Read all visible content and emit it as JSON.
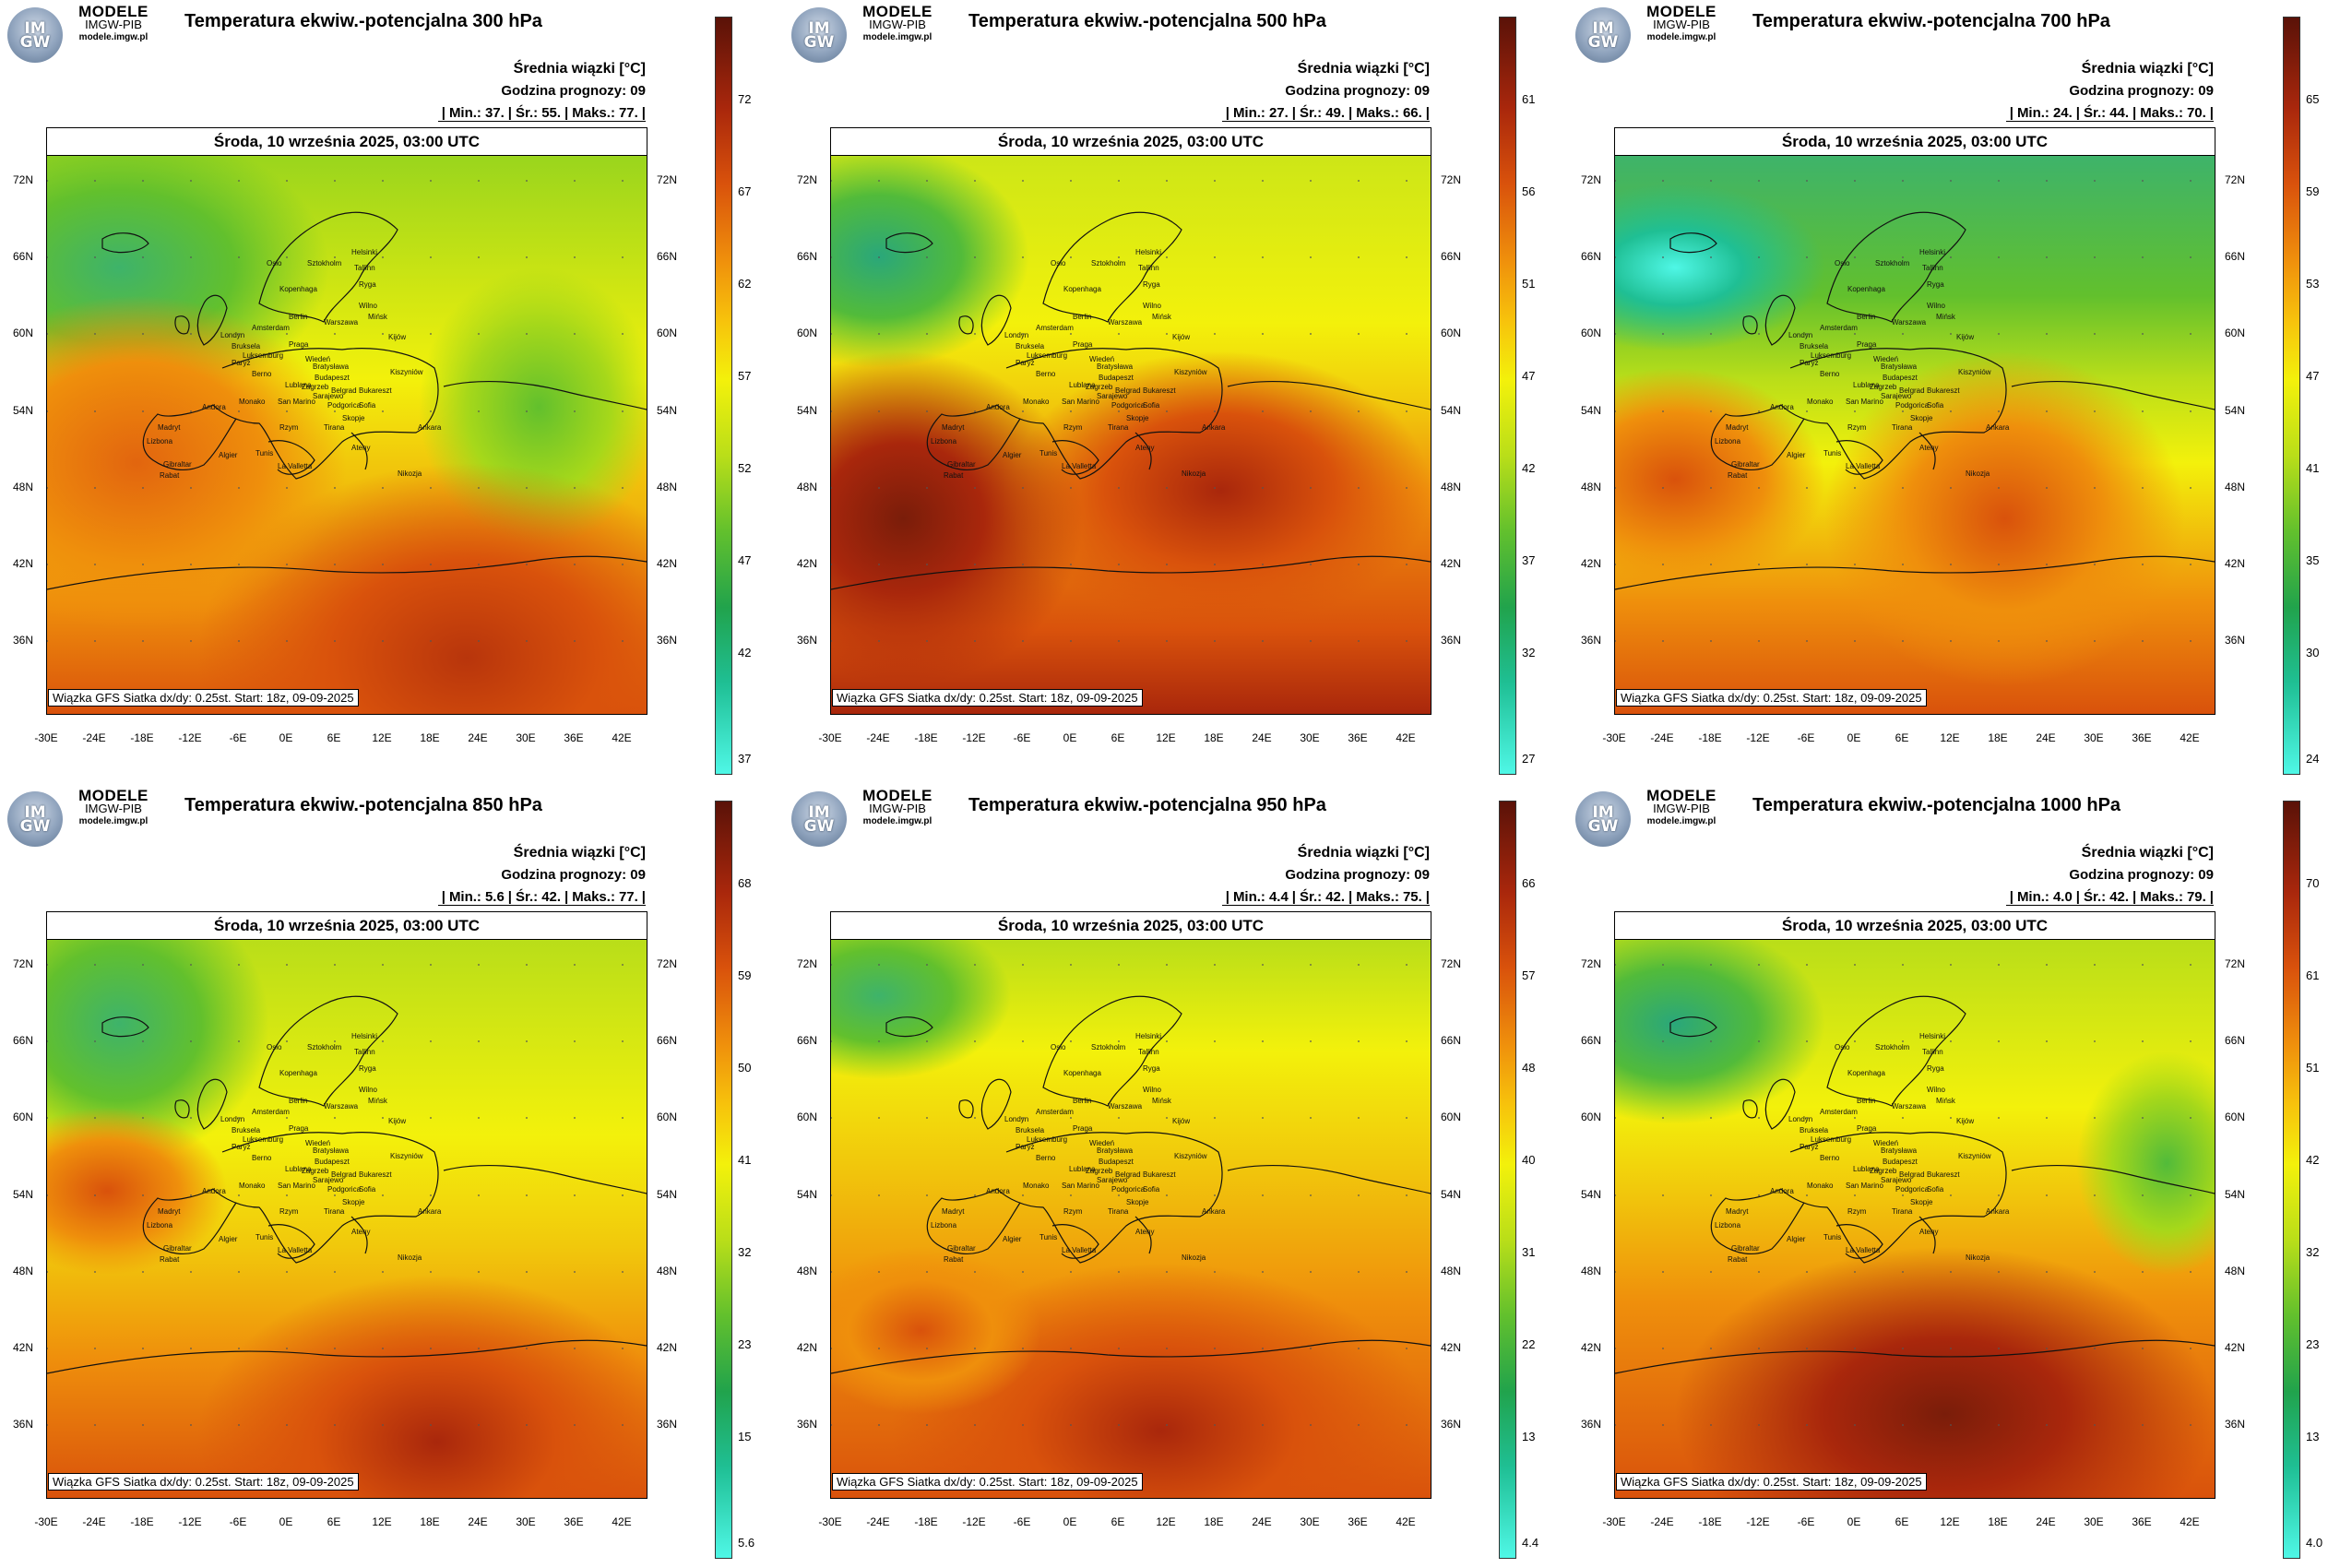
{
  "brand": {
    "main": "MODELE",
    "sub": "IMGW-PIB",
    "url": "modele.imgw.pl",
    "logo_text": "IM GW"
  },
  "common": {
    "legend_title": "Średnia wiązki [°C]",
    "forecast_hour": "Godzina prognozy: 09",
    "date": "Środa, 10 września 2025, 03:00 UTC",
    "footnote": "Wiązka GFS Siatka dx/dy: 0.25st. Start: 18z, 09-09-2025",
    "min_label": "Min.:",
    "mean_label": "Śr.:",
    "max_label": "Maks.:",
    "lat_labels": [
      "72N",
      "66N",
      "60N",
      "54N",
      "48N",
      "42N",
      "36N"
    ],
    "lon_labels": [
      "-30E",
      "-24E",
      "-18E",
      "-12E",
      "-6E",
      "0E",
      "6E",
      "12E",
      "18E",
      "24E",
      "30E",
      "36E",
      "42E"
    ],
    "cities": [
      "Oslo",
      "Sztokholm",
      "Helsinki",
      "Tallinn",
      "Ryga",
      "Kopenhaga",
      "Wilno",
      "Amsterdam",
      "Berlin",
      "Warszawa",
      "Mińsk",
      "Londyn",
      "Bruksela",
      "Luksemburg",
      "Praga",
      "Kijów",
      "Paryż",
      "Wiedeń",
      "Bratysława",
      "Berno",
      "Budapeszt",
      "Kiszyniów",
      "Lublana",
      "Zagrzeb",
      "Belgrad",
      "Bukareszt",
      "Sarajewo",
      "Podgorica",
      "Sofia",
      "Monako",
      "San Marino",
      "Andora",
      "Skopje",
      "Tirana",
      "Madryt",
      "Rzym",
      "Ankara",
      "Lizbona",
      "Ateny",
      "Algier",
      "Tunis",
      "Gibraltar",
      "La Valletta",
      "Rabat",
      "Nikozja"
    ],
    "colors": {
      "low": "#4ff7e6",
      "mid_green": "#21a34c",
      "yellow": "#f3f10b",
      "orange": "#ef8f0c",
      "high": "#5a1208"
    }
  },
  "panels": [
    {
      "title": "Temperatura ekwiw.-potencjalna 300 hPa",
      "min": "37.",
      "mean": "55.",
      "max": "77.",
      "ticks": [
        "72",
        "67",
        "62",
        "57",
        "52",
        "47",
        "42",
        "37"
      ]
    },
    {
      "title": "Temperatura ekwiw.-potencjalna 500 hPa",
      "min": "27.",
      "mean": "49.",
      "max": "66.",
      "ticks": [
        "61",
        "56",
        "51",
        "47",
        "42",
        "37",
        "32",
        "27"
      ]
    },
    {
      "title": "Temperatura ekwiw.-potencjalna 700 hPa",
      "min": "24.",
      "mean": "44.",
      "max": "70.",
      "ticks": [
        "65",
        "59",
        "53",
        "47",
        "41",
        "35",
        "30",
        "24"
      ]
    },
    {
      "title": "Temperatura ekwiw.-potencjalna 850 hPa",
      "min": "5.6",
      "mean": "42.",
      "max": "77.",
      "ticks": [
        "68",
        "59",
        "50",
        "41",
        "32",
        "23",
        "15",
        "5.6"
      ]
    },
    {
      "title": "Temperatura ekwiw.-potencjalna 950 hPa",
      "min": "4.4",
      "mean": "42.",
      "max": "75.",
      "ticks": [
        "66",
        "57",
        "48",
        "40",
        "31",
        "22",
        "13",
        "4.4"
      ]
    },
    {
      "title": "Temperatura ekwiw.-potencjalna 1000 hPa",
      "min": "4.0",
      "mean": "42.",
      "max": "79.",
      "ticks": [
        "70",
        "61",
        "51",
        "42",
        "32",
        "23",
        "13",
        "4.0"
      ]
    }
  ]
}
